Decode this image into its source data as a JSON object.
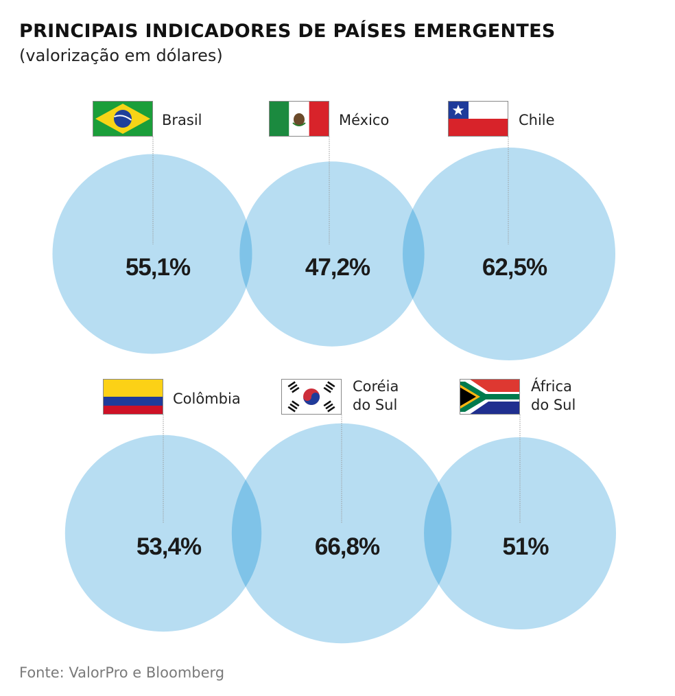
{
  "header": {
    "title": "PRINCIPAIS INDICADORES DE PAÍSES EMERGENTES",
    "subtitle": "(valorização em dólares)"
  },
  "footer": {
    "source": "Fonte: ValorPro e Bloomberg"
  },
  "colors": {
    "circle": "#b7ddf2",
    "overlap": "#7fc3e8",
    "leader": "#9a9a9a"
  },
  "chart_data": {
    "type": "bubble",
    "title": "PRINCIPAIS INDICADORES DE PAÍSES EMERGENTES",
    "subtitle": "(valorização em dólares)",
    "unit": "%",
    "countries": [
      {
        "name": "Brasil",
        "name_lines": [
          "Brasil"
        ],
        "value": 55.1,
        "label": "55,1%",
        "flag": "brazil-flag"
      },
      {
        "name": "México",
        "name_lines": [
          "México"
        ],
        "value": 47.2,
        "label": "47,2%",
        "flag": "mexico-flag"
      },
      {
        "name": "Chile",
        "name_lines": [
          "Chile"
        ],
        "value": 62.5,
        "label": "62,5%",
        "flag": "chile-flag"
      },
      {
        "name": "Colômbia",
        "name_lines": [
          "Colômbia"
        ],
        "value": 53.4,
        "label": "53,4%",
        "flag": "colombia-flag"
      },
      {
        "name": "Coréia do Sul",
        "name_lines": [
          "Coréia",
          "do Sul"
        ],
        "value": 66.8,
        "label": "66,8%",
        "flag": "south-korea-flag"
      },
      {
        "name": "África do Sul",
        "name_lines": [
          "África",
          "do Sul"
        ],
        "value": 51,
        "label": "51%",
        "flag": "south-africa-flag"
      }
    ]
  }
}
